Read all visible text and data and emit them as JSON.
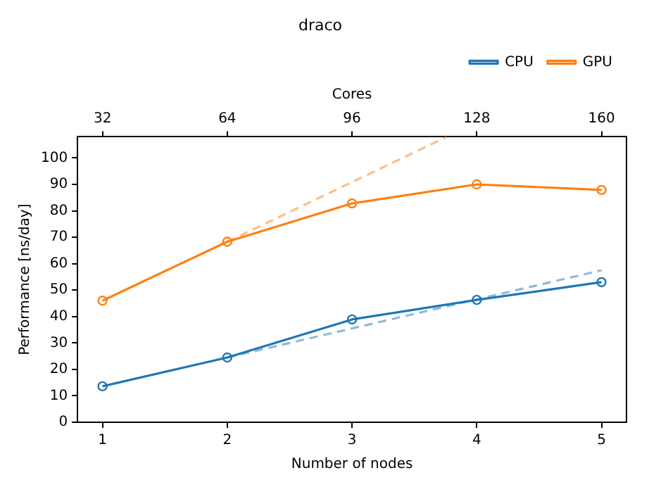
{
  "chart_data": {
    "type": "line",
    "title": "draco",
    "xlabel": "Number of nodes",
    "x2label": "Cores",
    "ylabel": "Performance [ns/day]",
    "x": [
      1,
      2,
      3,
      4,
      5
    ],
    "xlim": [
      0.8,
      5.2
    ],
    "xticks": [
      1,
      2,
      3,
      4,
      5
    ],
    "x2lim": [
      25.6,
      166.4
    ],
    "x2ticks": [
      32,
      64,
      96,
      128,
      160
    ],
    "ylim": [
      0,
      108
    ],
    "yticks": [
      0,
      10,
      20,
      30,
      40,
      50,
      60,
      70,
      80,
      90,
      100
    ],
    "legend": "top right",
    "grid": false,
    "marker": "circle",
    "line_style": "solid",
    "series": [
      {
        "name": "CPU",
        "color": "#1f77b4",
        "values": [
          13.6,
          24.5,
          38.9,
          46.3,
          53.0
        ]
      },
      {
        "name": "GPU",
        "color": "#ff7f0e",
        "values": [
          46.0,
          68.3,
          82.8,
          90.0,
          87.9
        ]
      },
      {
        "color": "#8fbbd9",
        "x": [
          2,
          5
        ],
        "values": [
          24.5,
          57.5
        ],
        "line_style": "dashed",
        "marker": "none"
      },
      {
        "color": "#ffbf86",
        "x": [
          2,
          3.76
        ],
        "values": [
          68.3,
          108
        ],
        "line_style": "dashed",
        "marker": "none"
      }
    ]
  }
}
